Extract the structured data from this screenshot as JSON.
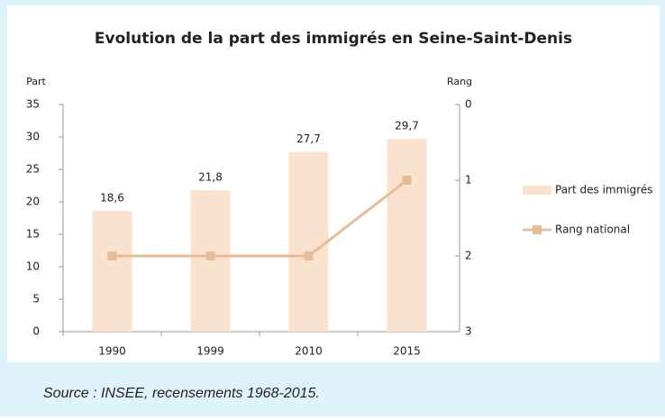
{
  "chart_data": {
    "type": "bar_line",
    "title": "Evolution de la part des immigrés en Seine-Saint-Denis",
    "y_label": "Part",
    "y2_label": "Rang",
    "categories": [
      "1990",
      "1999",
      "2010",
      "2015"
    ],
    "series": [
      {
        "name": "Part des immigrés",
        "type": "bar",
        "color": "#f9e3cf",
        "values": [
          18.6,
          21.8,
          27.7,
          29.7
        ],
        "value_labels": [
          "18,6",
          "21,8",
          "27,7",
          "29,7"
        ]
      },
      {
        "name": "Rang national",
        "type": "line",
        "axis": "y2",
        "color": "#e6bd96",
        "values": [
          2,
          2,
          2,
          1
        ]
      }
    ],
    "ylim": [
      0,
      35
    ],
    "yticks": [
      0,
      5,
      10,
      15,
      20,
      25,
      30,
      35
    ],
    "y2lim": [
      3,
      0
    ],
    "y2ticks": [
      0,
      1,
      2,
      3
    ],
    "legend": "right",
    "source": "Source : INSEE,   recensements 1968-2015."
  }
}
